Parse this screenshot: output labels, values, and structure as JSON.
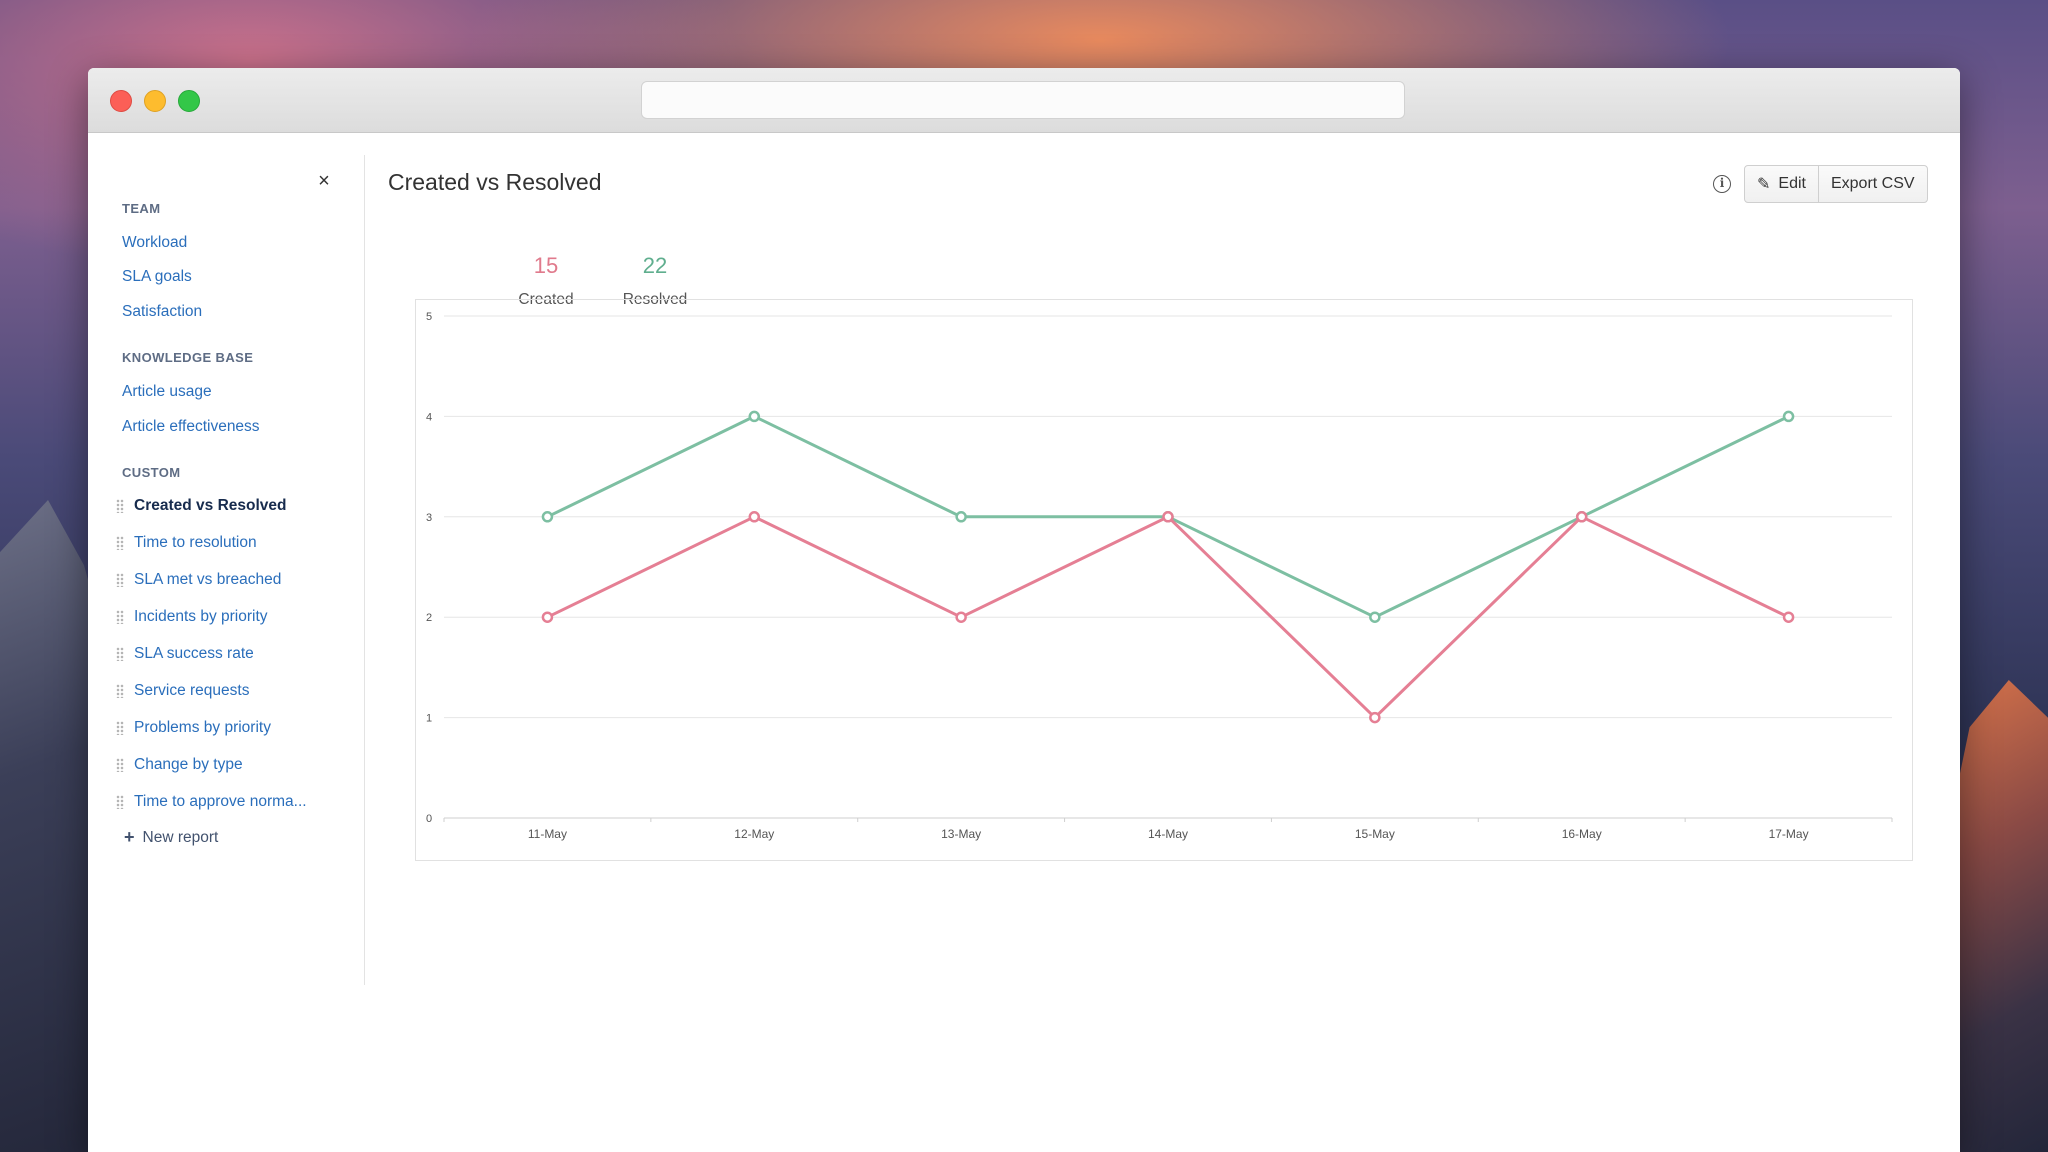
{
  "sidebar": {
    "close_label": "×",
    "sections": {
      "team": {
        "title": "TEAM",
        "items": [
          "Workload",
          "SLA goals",
          "Satisfaction"
        ]
      },
      "knowledge_base": {
        "title": "KNOWLEDGE BASE",
        "items": [
          "Article usage",
          "Article effectiveness"
        ]
      },
      "custom": {
        "title": "CUSTOM",
        "items": [
          "Created vs Resolved",
          "Time to resolution",
          "SLA met vs breached",
          "Incidents by priority",
          "SLA success rate",
          "Service requests",
          "Problems by priority",
          "Change by type",
          "Time to approve norma..."
        ],
        "active_index": 0
      }
    },
    "new_report_label": "New report"
  },
  "header": {
    "title": "Created vs Resolved",
    "info_icon": "i",
    "edit_label": "Edit",
    "export_label": "Export CSV"
  },
  "summary": {
    "created": {
      "value": "15",
      "label": "Created",
      "color": "#e07a8c"
    },
    "resolved": {
      "value": "22",
      "label": "Resolved",
      "color": "#5fae8e"
    }
  },
  "chart_data": {
    "type": "line",
    "x": [
      "11-May",
      "12-May",
      "13-May",
      "14-May",
      "15-May",
      "16-May",
      "17-May"
    ],
    "series": [
      {
        "name": "Resolved",
        "color": "#7dbfa2",
        "values": [
          3,
          4,
          3,
          3,
          2,
          3,
          4
        ]
      },
      {
        "name": "Created",
        "color": "#e57f94",
        "values": [
          2,
          3,
          2,
          3,
          1,
          3,
          2
        ]
      }
    ],
    "yticks": [
      "0",
      "1",
      "2",
      "3",
      "4",
      "5"
    ],
    "ylim": [
      0,
      5
    ],
    "grid": true
  }
}
